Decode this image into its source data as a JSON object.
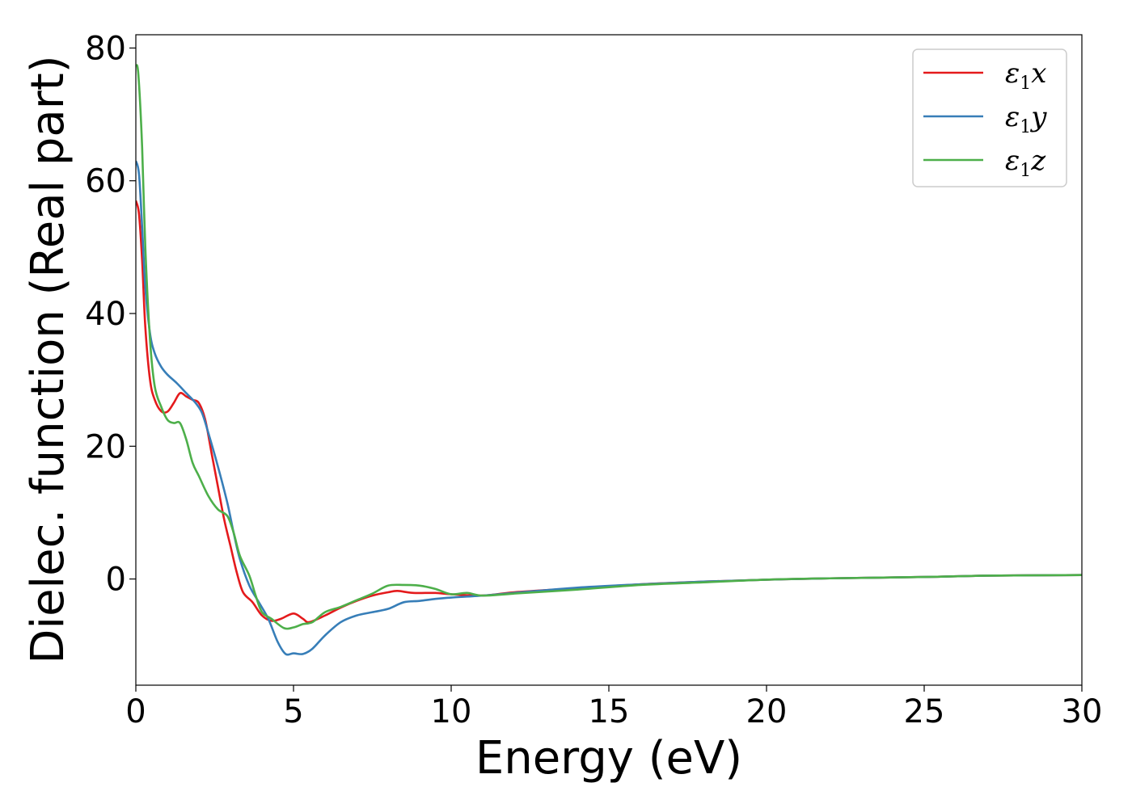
{
  "chart_data": {
    "type": "line",
    "xlabel": "Energy (eV)",
    "ylabel": "Dielec. function (Real part)",
    "xlim": [
      0,
      30
    ],
    "ylim": [
      -16,
      82
    ],
    "xticks": [
      0,
      5,
      10,
      15,
      20,
      25,
      30
    ],
    "yticks": [
      0,
      20,
      40,
      60,
      80
    ],
    "grid": false,
    "legend_position": "top-right",
    "series": [
      {
        "name": "ε1x",
        "symbol": "ε",
        "subscript": "1",
        "suffix": "x",
        "color": "#e41a1c",
        "points": [
          [
            0,
            57
          ],
          [
            0.1,
            55
          ],
          [
            0.2,
            48
          ],
          [
            0.3,
            38
          ],
          [
            0.45,
            30
          ],
          [
            0.6,
            27
          ],
          [
            0.8,
            25.3
          ],
          [
            1.0,
            25.2
          ],
          [
            1.2,
            26.5
          ],
          [
            1.4,
            28
          ],
          [
            1.6,
            27.5
          ],
          [
            1.8,
            27
          ],
          [
            2.0,
            26.5
          ],
          [
            2.2,
            24
          ],
          [
            2.4,
            19
          ],
          [
            2.6,
            14
          ],
          [
            2.8,
            9
          ],
          [
            3.0,
            5
          ],
          [
            3.2,
            1
          ],
          [
            3.4,
            -2
          ],
          [
            3.7,
            -3.5
          ],
          [
            4.0,
            -5.5
          ],
          [
            4.3,
            -6.3
          ],
          [
            4.6,
            -6
          ],
          [
            5.0,
            -5.2
          ],
          [
            5.3,
            -6
          ],
          [
            5.5,
            -6.5
          ],
          [
            6.0,
            -5.5
          ],
          [
            6.5,
            -4.3
          ],
          [
            7.0,
            -3.3
          ],
          [
            7.5,
            -2.5
          ],
          [
            8.0,
            -2
          ],
          [
            8.3,
            -1.8
          ],
          [
            8.8,
            -2.1
          ],
          [
            9.5,
            -2.1
          ],
          [
            10.0,
            -2.3
          ],
          [
            11.0,
            -2.5
          ],
          [
            12.0,
            -2.0
          ],
          [
            14.0,
            -1.4
          ],
          [
            16.0,
            -0.8
          ],
          [
            18.0,
            -0.4
          ],
          [
            20.0,
            -0.1
          ],
          [
            22.0,
            0.1
          ],
          [
            25.0,
            0.3
          ],
          [
            27.0,
            0.5
          ],
          [
            30.0,
            0.6
          ]
        ]
      },
      {
        "name": "ε1y",
        "symbol": "ε",
        "subscript": "1",
        "suffix": "y",
        "color": "#377eb8",
        "points": [
          [
            0,
            63
          ],
          [
            0.1,
            61
          ],
          [
            0.2,
            53
          ],
          [
            0.3,
            44
          ],
          [
            0.45,
            37
          ],
          [
            0.6,
            34
          ],
          [
            0.8,
            32
          ],
          [
            1.0,
            30.8
          ],
          [
            1.3,
            29.5
          ],
          [
            1.6,
            28
          ],
          [
            1.9,
            26.5
          ],
          [
            2.1,
            25
          ],
          [
            2.3,
            22
          ],
          [
            2.6,
            17
          ],
          [
            2.9,
            11.5
          ],
          [
            3.1,
            7
          ],
          [
            3.3,
            3
          ],
          [
            3.6,
            -1
          ],
          [
            3.9,
            -3.5
          ],
          [
            4.2,
            -6
          ],
          [
            4.5,
            -9.5
          ],
          [
            4.75,
            -11.3
          ],
          [
            5.0,
            -11.2
          ],
          [
            5.3,
            -11.3
          ],
          [
            5.6,
            -10.5
          ],
          [
            6.0,
            -8.5
          ],
          [
            6.5,
            -6.5
          ],
          [
            7.0,
            -5.5
          ],
          [
            7.5,
            -5
          ],
          [
            8.0,
            -4.5
          ],
          [
            8.5,
            -3.5
          ],
          [
            9.0,
            -3.3
          ],
          [
            9.5,
            -3
          ],
          [
            10.0,
            -2.8
          ],
          [
            11.0,
            -2.5
          ],
          [
            12.0,
            -2.1
          ],
          [
            14.0,
            -1.3
          ],
          [
            16.0,
            -0.8
          ],
          [
            18.0,
            -0.4
          ],
          [
            20.0,
            -0.1
          ],
          [
            22.0,
            0.1
          ],
          [
            25.0,
            0.3
          ],
          [
            27.0,
            0.5
          ],
          [
            30.0,
            0.6
          ]
        ]
      },
      {
        "name": "ε1z",
        "symbol": "ε",
        "subscript": "1",
        "suffix": "z",
        "color": "#4daf4a",
        "points": [
          [
            0,
            77.5
          ],
          [
            0.08,
            76
          ],
          [
            0.2,
            65
          ],
          [
            0.3,
            50
          ],
          [
            0.45,
            36
          ],
          [
            0.6,
            29
          ],
          [
            0.8,
            26
          ],
          [
            1.0,
            24
          ],
          [
            1.2,
            23.5
          ],
          [
            1.4,
            23.5
          ],
          [
            1.6,
            21
          ],
          [
            1.8,
            17.5
          ],
          [
            2.0,
            15.5
          ],
          [
            2.3,
            12.5
          ],
          [
            2.6,
            10.5
          ],
          [
            2.9,
            9.5
          ],
          [
            3.1,
            7
          ],
          [
            3.3,
            3.5
          ],
          [
            3.6,
            0.5
          ],
          [
            3.8,
            -2.5
          ],
          [
            4.0,
            -5
          ],
          [
            4.3,
            -6
          ],
          [
            4.7,
            -7.4
          ],
          [
            5.0,
            -7.3
          ],
          [
            5.3,
            -6.8
          ],
          [
            5.6,
            -6.5
          ],
          [
            6.0,
            -5
          ],
          [
            6.5,
            -4.2
          ],
          [
            7.0,
            -3.2
          ],
          [
            7.5,
            -2.2
          ],
          [
            8.0,
            -1
          ],
          [
            8.5,
            -0.9
          ],
          [
            9.0,
            -1
          ],
          [
            9.5,
            -1.5
          ],
          [
            10.0,
            -2.3
          ],
          [
            10.5,
            -2.1
          ],
          [
            11.0,
            -2.5
          ],
          [
            12.0,
            -2.2
          ],
          [
            14.0,
            -1.6
          ],
          [
            16.0,
            -0.9
          ],
          [
            18.0,
            -0.5
          ],
          [
            20.0,
            -0.1
          ],
          [
            22.0,
            0.1
          ],
          [
            25.0,
            0.3
          ],
          [
            27.0,
            0.5
          ],
          [
            30.0,
            0.6
          ]
        ]
      }
    ]
  }
}
